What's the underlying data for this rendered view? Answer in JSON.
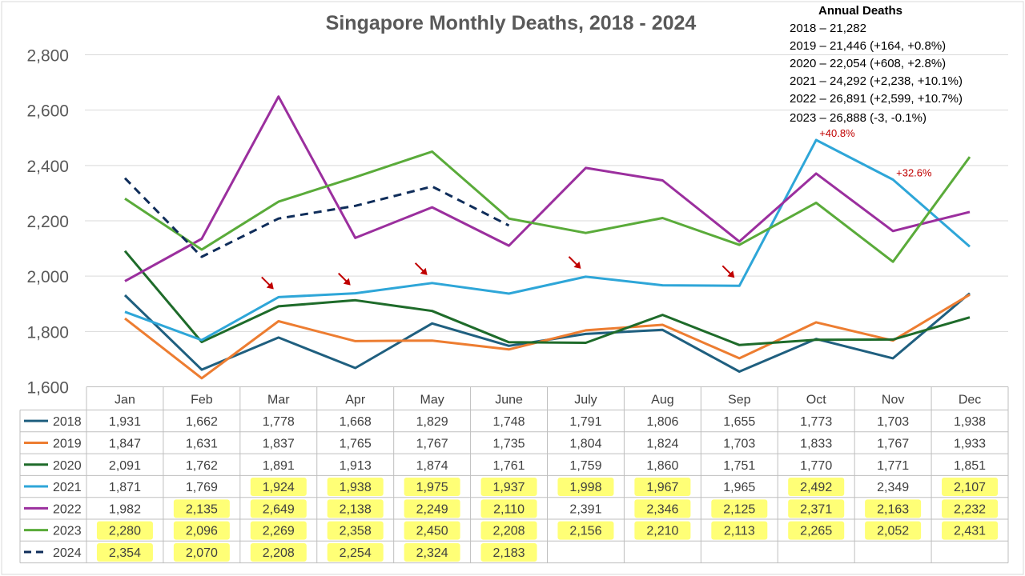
{
  "chart_data": {
    "type": "line",
    "title": "Singapore Monthly Deaths, 2018 - 2024",
    "categories": [
      "Jan",
      "Feb",
      "Mar",
      "Apr",
      "May",
      "June",
      "July",
      "Aug",
      "Sep",
      "Oct",
      "Nov",
      "Dec"
    ],
    "ylim": [
      1600,
      2850
    ],
    "yticks": [
      "1,600",
      "1,800",
      "2,000",
      "2,200",
      "2,400",
      "2,600",
      "2,800"
    ],
    "ytick_values": [
      1600,
      1800,
      2000,
      2200,
      2400,
      2600,
      2800
    ],
    "grid": true,
    "legend": "data-table",
    "series": [
      {
        "name": "2018",
        "color": "#1f5f7f",
        "dashed": false,
        "values": [
          1931,
          1662,
          1778,
          1668,
          1829,
          1748,
          1791,
          1806,
          1655,
          1773,
          1703,
          1938
        ],
        "labels": [
          "1,931",
          "1,662",
          "1,778",
          "1,668",
          "1,829",
          "1,748",
          "1,791",
          "1,806",
          "1,655",
          "1,773",
          "1,703",
          "1,938"
        ]
      },
      {
        "name": "2019",
        "color": "#ed7d31",
        "dashed": false,
        "values": [
          1847,
          1631,
          1837,
          1765,
          1767,
          1735,
          1804,
          1824,
          1703,
          1833,
          1767,
          1933
        ],
        "labels": [
          "1,847",
          "1,631",
          "1,837",
          "1,765",
          "1,767",
          "1,735",
          "1,804",
          "1,824",
          "1,703",
          "1,833",
          "1,767",
          "1,933"
        ]
      },
      {
        "name": "2020",
        "color": "#1e6b2a",
        "dashed": false,
        "values": [
          2091,
          1762,
          1891,
          1913,
          1874,
          1761,
          1759,
          1860,
          1751,
          1770,
          1771,
          1851
        ],
        "labels": [
          "2,091",
          "1,762",
          "1,891",
          "1,913",
          "1,874",
          "1,761",
          "1,759",
          "1,860",
          "1,751",
          "1,770",
          "1,771",
          "1,851"
        ]
      },
      {
        "name": "2021",
        "color": "#2ea6d8",
        "dashed": false,
        "values": [
          1871,
          1769,
          1924,
          1938,
          1975,
          1937,
          1998,
          1967,
          1965,
          2492,
          2349,
          2107
        ],
        "labels": [
          "1,871",
          "1,769",
          "1,924",
          "1,938",
          "1,975",
          "1,937",
          "1,998",
          "1,967",
          "1,965",
          "2,492",
          "2,349",
          "2,107"
        ]
      },
      {
        "name": "2022",
        "color": "#9b2f9e",
        "dashed": false,
        "values": [
          1982,
          2135,
          2649,
          2138,
          2249,
          2110,
          2391,
          2346,
          2125,
          2371,
          2163,
          2232
        ],
        "labels": [
          "1,982",
          "2,135",
          "2,649",
          "2,138",
          "2,249",
          "2,110",
          "2,391",
          "2,346",
          "2,125",
          "2,371",
          "2,163",
          "2,232"
        ]
      },
      {
        "name": "2023",
        "color": "#5aab3a",
        "dashed": false,
        "values": [
          2280,
          2096,
          2269,
          2358,
          2450,
          2208,
          2156,
          2210,
          2113,
          2265,
          2052,
          2431
        ],
        "labels": [
          "2,280",
          "2,096",
          "2,269",
          "2,358",
          "2,450",
          "2,208",
          "2,156",
          "2,210",
          "2,113",
          "2,265",
          "2,052",
          "2,431"
        ]
      },
      {
        "name": "2024",
        "color": "#0f2d5a",
        "dashed": true,
        "values": [
          2354,
          2070,
          2208,
          2254,
          2324,
          2183,
          null,
          null,
          null,
          null,
          null,
          null
        ],
        "labels": [
          "2,354",
          "2,070",
          "2,208",
          "2,254",
          "2,324",
          "2,183",
          "",
          "",
          "",
          "",
          "",
          ""
        ]
      }
    ],
    "highlights": {
      "2021": [
        2,
        3,
        4,
        5,
        6,
        7,
        9,
        11
      ],
      "2022": [
        1,
        2,
        3,
        4,
        5,
        7,
        8,
        9,
        10,
        11
      ],
      "2023": [
        0,
        1,
        2,
        3,
        4,
        5,
        6,
        7,
        8,
        9,
        10,
        11
      ],
      "2024": [
        0,
        1,
        2,
        3,
        4,
        5
      ]
    },
    "arrows": {
      "series": "2021",
      "months": [
        2,
        3,
        4,
        6,
        8
      ],
      "color": "#c00000"
    },
    "annotations": {
      "heading": "Annual Deaths",
      "lines": [
        "2018 – 21,282",
        "2019 – 21,446 (+164, +0.8%)",
        "2020 – 22,054 (+608, +2.8%)",
        "2021 – 24,292 (+2,238, +10.1%)",
        "2022 – 26,891 (+2,599, +10.7%)",
        "2023 – 26,888 (-3, -0.1%)"
      ],
      "callouts": [
        {
          "text": "+40.8%",
          "series": "2021",
          "month": 9
        },
        {
          "text": "+32.6%",
          "series": "2021",
          "month": 10
        }
      ]
    }
  }
}
